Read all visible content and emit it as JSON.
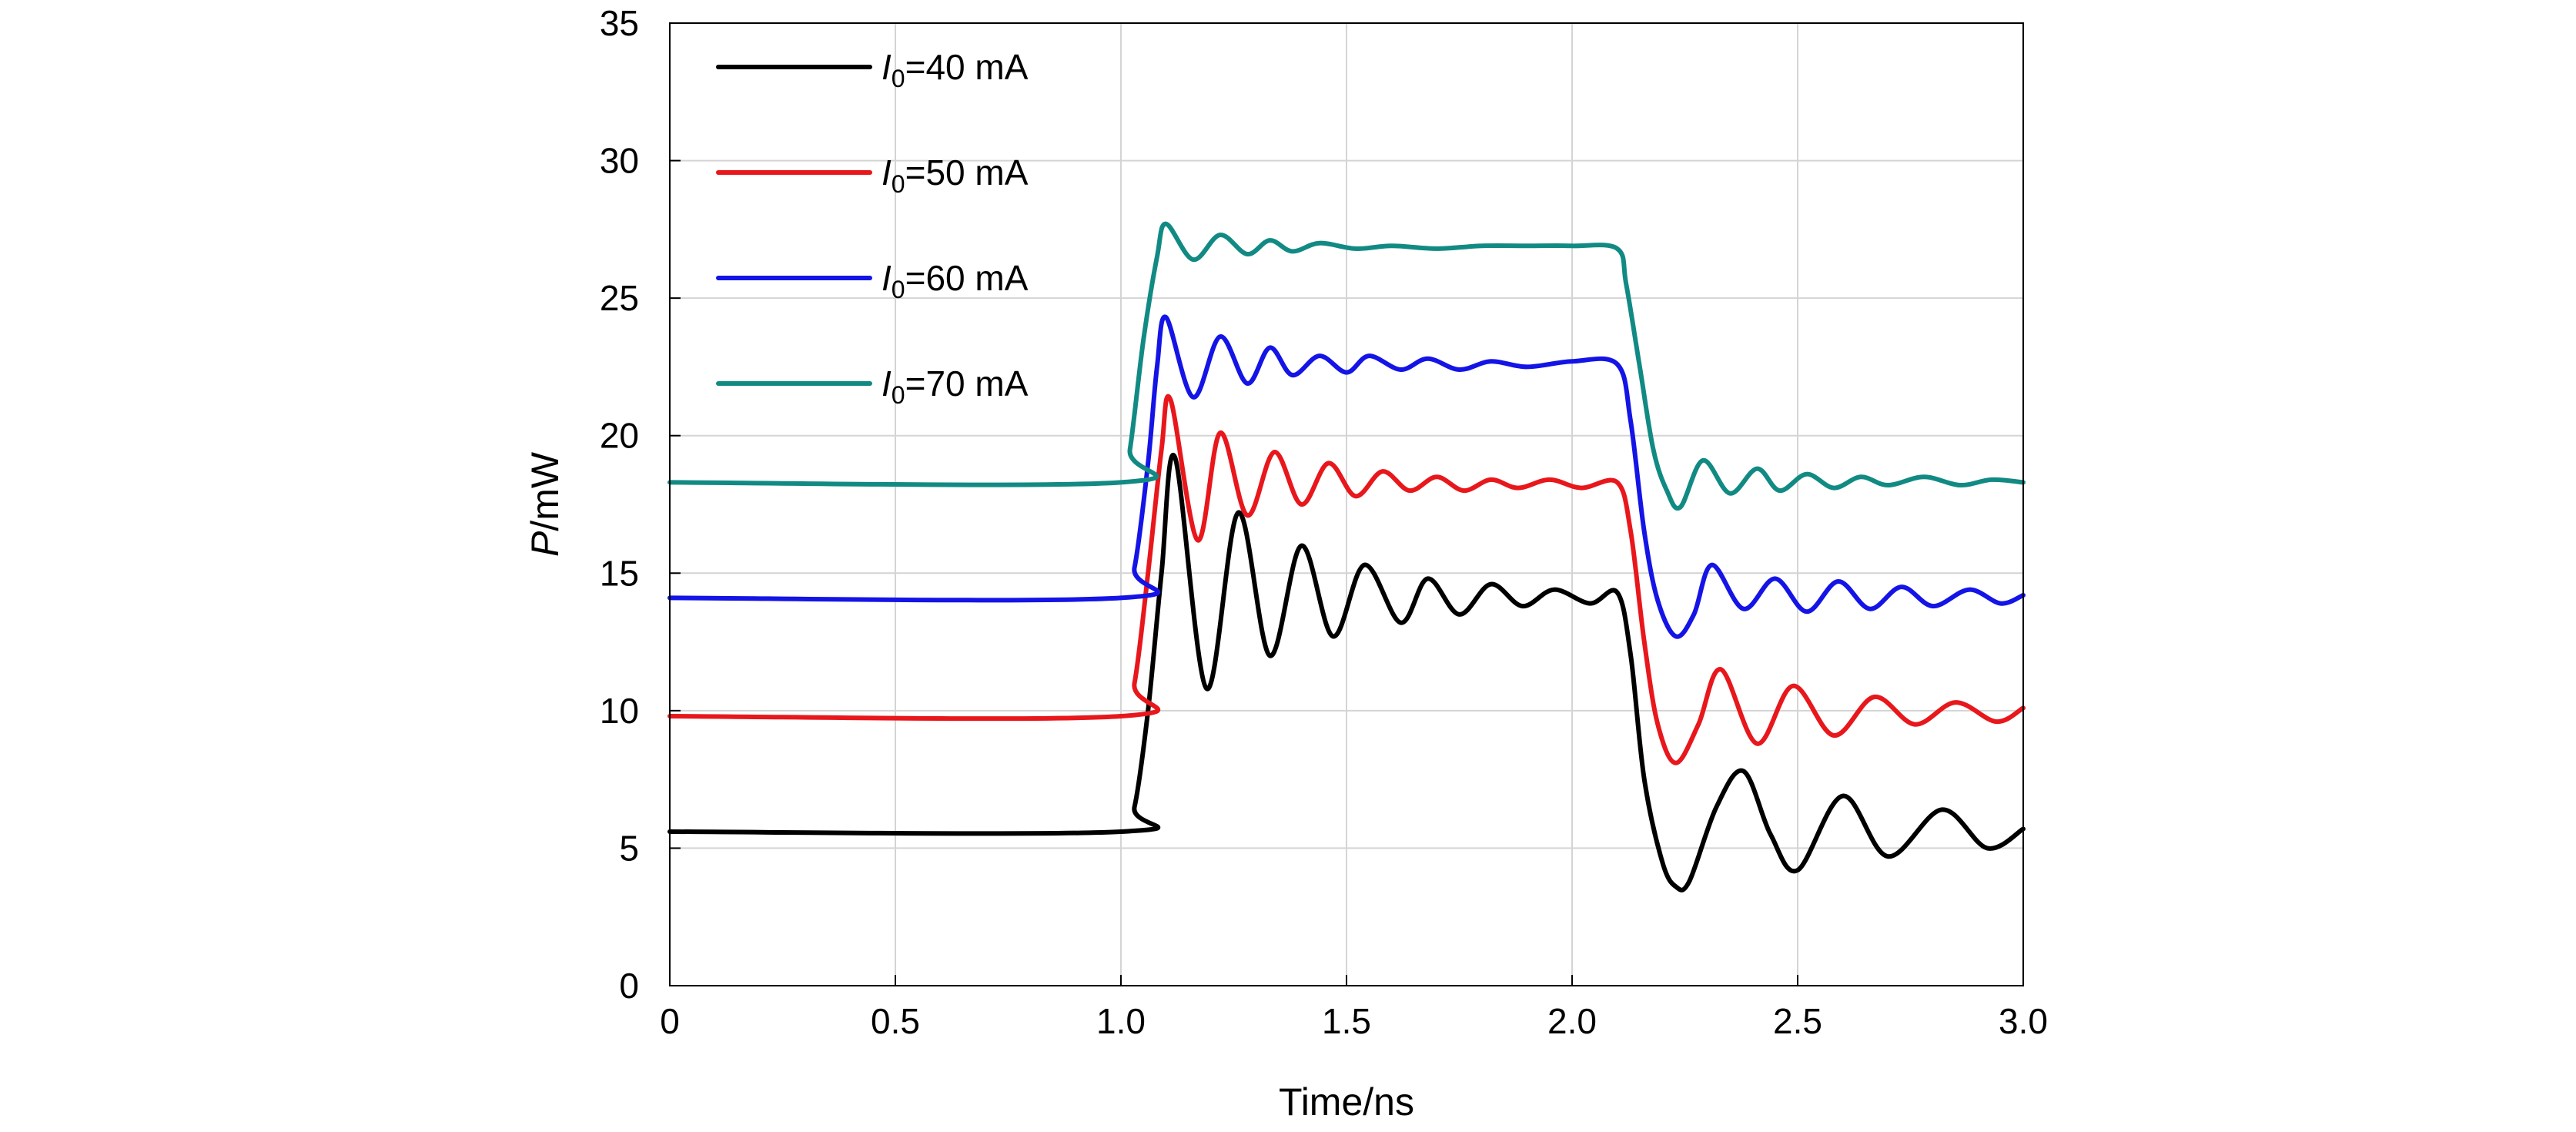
{
  "chart_data": {
    "type": "line",
    "title": "",
    "xlabel": "Time/ns",
    "ylabel_italic": "P",
    "ylabel_rest": "/mW",
    "xlim": [
      0,
      3.0
    ],
    "ylim": [
      0,
      35
    ],
    "x_tick_labels": [
      "0",
      "0.5",
      "1.0",
      "1.5",
      "2.0",
      "2.5",
      "3.0"
    ],
    "x_tick_values": [
      0,
      0.5,
      1.0,
      1.5,
      2.0,
      2.5,
      3.0
    ],
    "y_tick_labels": [
      "0",
      "5",
      "10",
      "15",
      "20",
      "25",
      "30",
      "35"
    ],
    "y_tick_values": [
      0,
      5,
      10,
      15,
      20,
      25,
      30,
      35
    ],
    "grid": true,
    "legend_position": "top-left",
    "series": [
      {
        "name_italic": "I",
        "name_sub": "0",
        "name_rest": "=40 mA",
        "color": "#000000",
        "x": [
          0,
          1.0,
          1.03,
          1.06,
          1.09,
          1.12,
          1.19,
          1.26,
          1.33,
          1.4,
          1.47,
          1.54,
          1.62,
          1.68,
          1.75,
          1.82,
          1.89,
          1.96,
          2.04,
          2.1,
          2.13,
          2.16,
          2.2,
          2.23,
          2.26,
          2.32,
          2.38,
          2.44,
          2.5,
          2.6,
          2.7,
          2.82,
          2.92,
          3.0
        ],
        "y": [
          5.6,
          5.6,
          6.5,
          10.0,
          15.0,
          19.2,
          10.8,
          17.2,
          12.0,
          16.0,
          12.7,
          15.3,
          13.2,
          14.8,
          13.5,
          14.6,
          13.8,
          14.4,
          13.9,
          14.3,
          12.0,
          7.5,
          4.5,
          3.6,
          3.8,
          6.5,
          7.8,
          5.5,
          4.2,
          6.9,
          4.7,
          6.4,
          5.0,
          5.7
        ]
      },
      {
        "name_italic": "I",
        "name_sub": "0",
        "name_rest": "=50 mA",
        "color": "#e8171c",
        "x": [
          0,
          1.0,
          1.03,
          1.06,
          1.09,
          1.11,
          1.17,
          1.22,
          1.28,
          1.34,
          1.4,
          1.46,
          1.52,
          1.58,
          1.64,
          1.7,
          1.76,
          1.82,
          1.88,
          1.95,
          2.02,
          2.1,
          2.13,
          2.16,
          2.19,
          2.23,
          2.28,
          2.33,
          2.41,
          2.49,
          2.58,
          2.67,
          2.76,
          2.85,
          2.94,
          3.0
        ],
        "y": [
          9.8,
          9.8,
          11.0,
          15.0,
          19.5,
          21.3,
          16.2,
          20.1,
          17.1,
          19.4,
          17.5,
          19.0,
          17.8,
          18.7,
          18.0,
          18.5,
          18.0,
          18.4,
          18.1,
          18.4,
          18.1,
          18.3,
          16.5,
          12.5,
          9.5,
          8.1,
          9.5,
          11.5,
          8.8,
          10.9,
          9.1,
          10.5,
          9.5,
          10.3,
          9.6,
          10.1
        ]
      },
      {
        "name_italic": "I",
        "name_sub": "0",
        "name_rest": "=60 mA",
        "color": "#1414e6",
        "x": [
          0,
          1.0,
          1.03,
          1.06,
          1.08,
          1.1,
          1.16,
          1.22,
          1.28,
          1.33,
          1.38,
          1.44,
          1.5,
          1.55,
          1.62,
          1.68,
          1.75,
          1.82,
          1.9,
          2.0,
          2.1,
          2.13,
          2.16,
          2.19,
          2.23,
          2.27,
          2.31,
          2.38,
          2.45,
          2.52,
          2.59,
          2.66,
          2.73,
          2.8,
          2.88,
          2.95,
          3.0
        ],
        "y": [
          14.1,
          14.1,
          15.2,
          19.0,
          22.5,
          24.3,
          21.4,
          23.6,
          21.9,
          23.2,
          22.2,
          22.9,
          22.3,
          22.9,
          22.4,
          22.8,
          22.4,
          22.7,
          22.5,
          22.7,
          22.6,
          20.5,
          16.5,
          14.0,
          12.7,
          13.5,
          15.3,
          13.7,
          14.8,
          13.6,
          14.7,
          13.7,
          14.5,
          13.8,
          14.4,
          13.9,
          14.2
        ]
      },
      {
        "name_italic": "I",
        "name_sub": "0",
        "name_rest": "=70 mA",
        "color": "#128a84",
        "x": [
          0,
          1.0,
          1.02,
          1.05,
          1.08,
          1.1,
          1.16,
          1.22,
          1.28,
          1.33,
          1.38,
          1.44,
          1.52,
          1.6,
          1.7,
          1.8,
          1.9,
          2.0,
          2.1,
          2.12,
          2.15,
          2.18,
          2.21,
          2.24,
          2.29,
          2.35,
          2.41,
          2.46,
          2.52,
          2.58,
          2.64,
          2.7,
          2.78,
          2.86,
          2.93,
          3.0
        ],
        "y": [
          18.3,
          18.3,
          19.5,
          23.5,
          26.5,
          27.7,
          26.4,
          27.3,
          26.6,
          27.1,
          26.7,
          27.0,
          26.8,
          26.9,
          26.8,
          26.9,
          26.9,
          26.9,
          26.8,
          25.5,
          22.5,
          19.5,
          18.0,
          17.4,
          19.1,
          17.9,
          18.8,
          18.0,
          18.6,
          18.1,
          18.5,
          18.2,
          18.5,
          18.2,
          18.4,
          18.3
        ]
      }
    ]
  }
}
